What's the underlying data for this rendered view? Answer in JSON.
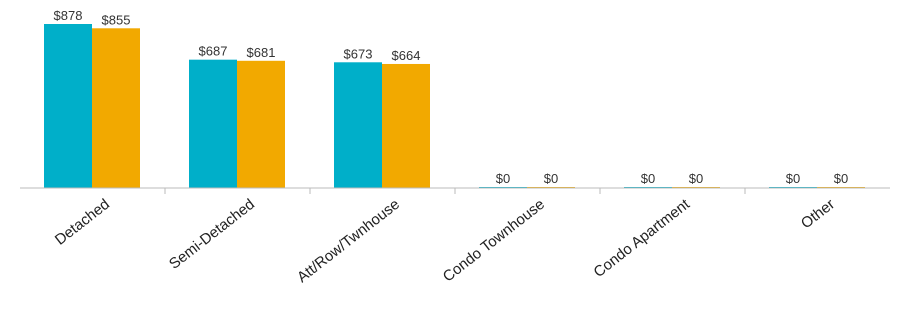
{
  "chart_data": {
    "type": "bar",
    "categories": [
      "Detached",
      "Semi-Detached",
      "Att/Row/Twnhouse",
      "Condo Townhouse",
      "Condo Apartment",
      "Other"
    ],
    "series": [
      {
        "values": [
          878,
          687,
          673,
          0,
          0,
          0
        ],
        "value_labels": [
          "$878",
          "$687",
          "$673",
          "$0",
          "$0",
          "$0"
        ],
        "color": "#00afc9"
      },
      {
        "values": [
          855,
          681,
          664,
          0,
          0,
          0
        ],
        "value_labels": [
          "$855",
          "$681",
          "$664",
          "$0",
          "$0",
          "$0"
        ],
        "color": "#f2a900"
      }
    ],
    "ylim": [
      0,
      878
    ],
    "grid": false,
    "axis_color": "#bbbbbb"
  }
}
